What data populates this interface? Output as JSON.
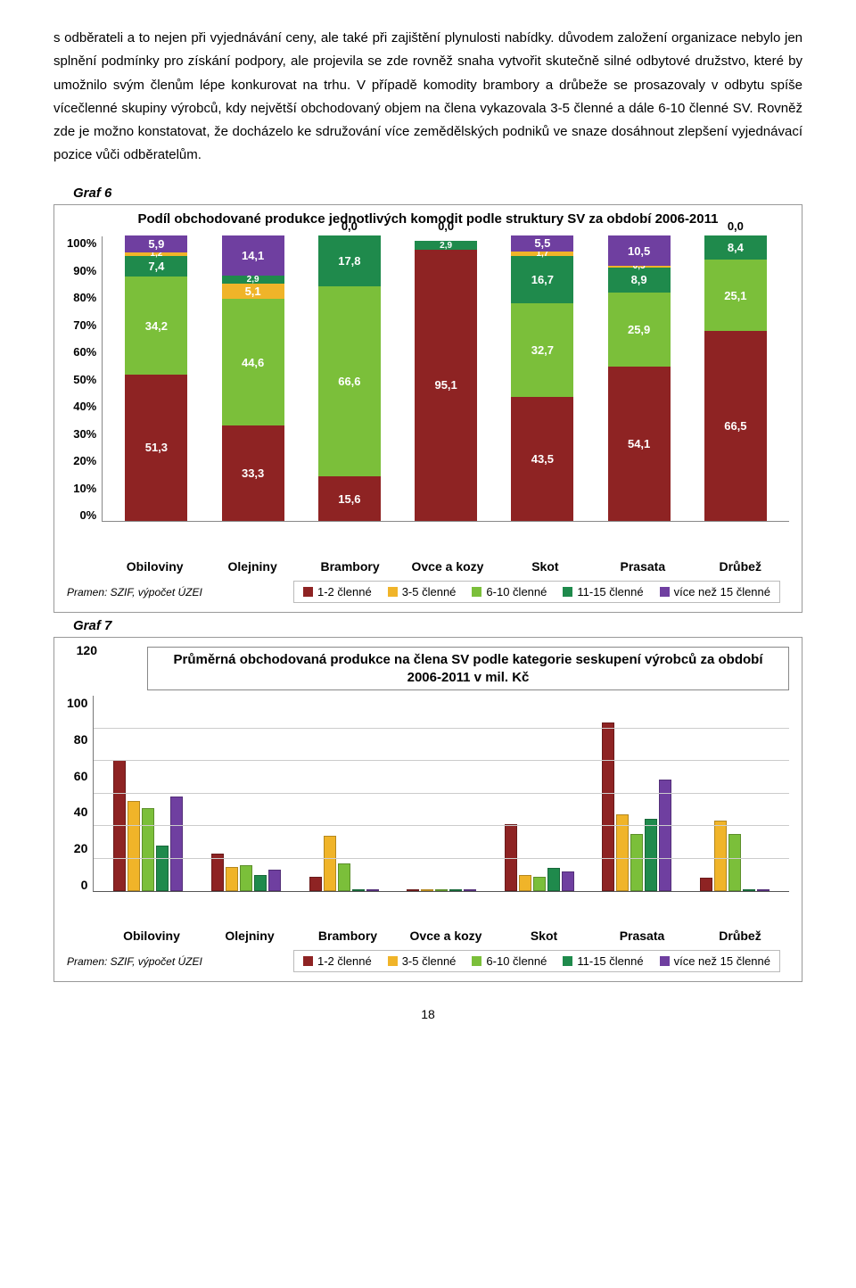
{
  "text": {
    "paragraph": "s odběrateli a to nejen při vyjednávání ceny, ale také při zajištění plynulosti nabídky. důvodem založení organizace nebylo jen splnění podmínky pro získání podpory, ale projevila se zde rovněž snaha vytvořit skutečně silné odbytové družstvo, které by umožnilo svým členům lépe konkurovat na trhu. V případě komodity brambory a drůbeže se prosazovaly v odbytu spíše vícečlenné skupiny výrobců, kdy největší obchodovaný objem na člena vykazovala 3-5 členné a dále 6-10 členné SV. Rovněž zde je možno konstatovat, že docházelo ke sdružování více zemědělských podniků ve snaze dosáhnout zlepšení vyjednávací pozice vůči odběratelům.",
    "graf6": "Graf 6",
    "graf7": "Graf 7",
    "source": "Pramen: SZIF, výpočet ÚZEI",
    "page": "18"
  },
  "palette": {
    "series": {
      "s1": "#8e2323",
      "s2": "#f0b429",
      "s3": "#7bbf3a",
      "s4": "#1f8a4c",
      "s5": "#6f3fa0"
    },
    "grid": "#cccccc"
  },
  "legend": [
    {
      "key": "s1",
      "label": "1-2 členné"
    },
    {
      "key": "s2",
      "label": "3-5 členné"
    },
    {
      "key": "s3",
      "label": "6-10 členné"
    },
    {
      "key": "s4",
      "label": "11-15 členné"
    },
    {
      "key": "s5",
      "label": "více než 15 členné"
    }
  ],
  "chart6": {
    "title": "Podíl obchodované produkce jednotlivých komodit podle struktury SV za období 2006-2011",
    "yticks": [
      "100%",
      "90%",
      "80%",
      "70%",
      "60%",
      "50%",
      "40%",
      "30%",
      "20%",
      "10%",
      "0%"
    ],
    "categories": [
      {
        "name": "Obiloviny",
        "segments": [
          {
            "key": "s1",
            "val": 51.3,
            "label": "51,3"
          },
          {
            "key": "s3",
            "val": 34.2,
            "label": "34,2"
          },
          {
            "key": "s4",
            "val": 7.4,
            "label": "7,4"
          },
          {
            "key": "s2",
            "val": 1.2,
            "label": "1,2"
          },
          {
            "key": "s5",
            "val": 5.9,
            "label": "5,9"
          }
        ],
        "top": ""
      },
      {
        "name": "Olejniny",
        "segments": [
          {
            "key": "s1",
            "val": 33.3,
            "label": "33,3"
          },
          {
            "key": "s3",
            "val": 44.6,
            "label": "44,6"
          },
          {
            "key": "s2",
            "val": 5.1,
            "label": "5,1"
          },
          {
            "key": "s4",
            "val": 2.9,
            "label": "2,9"
          },
          {
            "key": "s5",
            "val": 14.1,
            "label": "14,1"
          }
        ],
        "top": ""
      },
      {
        "name": "Brambory",
        "segments": [
          {
            "key": "s1",
            "val": 15.6,
            "label": "15,6"
          },
          {
            "key": "s3",
            "val": 66.6,
            "label": "66,6"
          },
          {
            "key": "s4",
            "val": 17.8,
            "label": "17,8"
          }
        ],
        "top": "0,0"
      },
      {
        "name": "Ovce a kozy",
        "segments": [
          {
            "key": "s1",
            "val": 95.1,
            "label": "95,1"
          },
          {
            "key": "s4",
            "val": 2.9,
            "label": "2,9"
          }
        ],
        "top": "0,0\n0,0"
      },
      {
        "name": "Skot",
        "segments": [
          {
            "key": "s1",
            "val": 43.5,
            "label": "43,5"
          },
          {
            "key": "s3",
            "val": 32.7,
            "label": "32,7"
          },
          {
            "key": "s4",
            "val": 16.7,
            "label": "16,7"
          },
          {
            "key": "s2",
            "val": 1.7,
            "label": "1,7"
          },
          {
            "key": "s5",
            "val": 5.5,
            "label": "5,5"
          }
        ],
        "top": ""
      },
      {
        "name": "Prasata",
        "segments": [
          {
            "key": "s1",
            "val": 54.1,
            "label": "54,1"
          },
          {
            "key": "s3",
            "val": 25.9,
            "label": "25,9"
          },
          {
            "key": "s4",
            "val": 8.9,
            "label": "8,9"
          },
          {
            "key": "s2",
            "val": 0.5,
            "label": "0,5"
          },
          {
            "key": "s5",
            "val": 10.5,
            "label": "10,5"
          }
        ],
        "top": ""
      },
      {
        "name": "Drůbež",
        "segments": [
          {
            "key": "s1",
            "val": 66.5,
            "label": "66,5"
          },
          {
            "key": "s3",
            "val": 25.1,
            "label": "25,1"
          },
          {
            "key": "s4",
            "val": 8.4,
            "label": "8,4"
          }
        ],
        "top": "0,0"
      }
    ]
  },
  "chart7": {
    "title": "Průměrná obchodovaná produkce na člena SV podle kategorie seskupení výrobců za období 2006-2011 v mil. Kč",
    "ymax": 120,
    "yticks": [
      "120",
      "100",
      "80",
      "60",
      "40",
      "20",
      "0"
    ],
    "categories": [
      {
        "name": "Obiloviny",
        "vals": {
          "s1": 80,
          "s2": 55,
          "s3": 51,
          "s4": 28,
          "s5": 58
        }
      },
      {
        "name": "Olejniny",
        "vals": {
          "s1": 23,
          "s2": 15,
          "s3": 16,
          "s4": 10,
          "s5": 13
        }
      },
      {
        "name": "Brambory",
        "vals": {
          "s1": 9,
          "s2": 34,
          "s3": 17,
          "s4": 1,
          "s5": 0
        }
      },
      {
        "name": "Ovce a kozy",
        "vals": {
          "s1": 1,
          "s2": 0,
          "s3": 0,
          "s4": 1,
          "s5": 0
        }
      },
      {
        "name": "Skot",
        "vals": {
          "s1": 41,
          "s2": 10,
          "s3": 9,
          "s4": 14,
          "s5": 12
        }
      },
      {
        "name": "Prasata",
        "vals": {
          "s1": 103,
          "s2": 47,
          "s3": 35,
          "s4": 44,
          "s5": 68
        }
      },
      {
        "name": "Drůbež",
        "vals": {
          "s1": 8,
          "s2": 43,
          "s3": 35,
          "s4": 1,
          "s5": 0
        }
      }
    ]
  }
}
